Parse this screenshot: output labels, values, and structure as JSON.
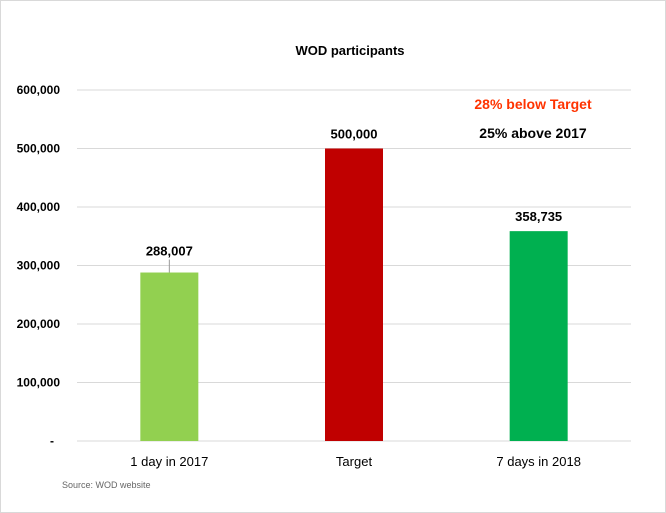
{
  "chart_data": {
    "type": "bar",
    "title": "WOD participants",
    "categories": [
      "1 day in 2017",
      "Target",
      "7 days in 2018"
    ],
    "values": [
      288007,
      500000,
      358735
    ],
    "value_labels": [
      "288,007",
      "500,000",
      "358,735"
    ],
    "colors": [
      "#92d050",
      "#c00000",
      "#00b050"
    ],
    "ylim": [
      0,
      600000
    ],
    "yticks": [
      0,
      100000,
      200000,
      300000,
      400000,
      500000,
      600000
    ],
    "ytick_labels": [
      "-",
      "100,000",
      "200,000",
      "300,000",
      "400,000",
      "500,000",
      "600,000"
    ],
    "xlabel": "",
    "ylabel": "",
    "grid": true,
    "annotations": [
      {
        "text": "28% below Target",
        "color": "#ff3300"
      },
      {
        "text": "25% above 2017",
        "color": "#000000"
      }
    ],
    "source": "Source:  WOD website"
  }
}
